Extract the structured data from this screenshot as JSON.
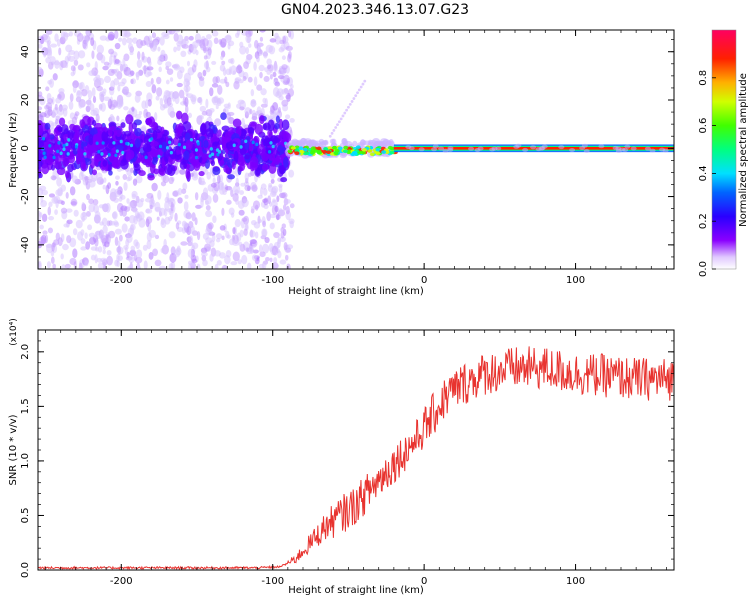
{
  "title": "GN04.2023.346.13.07.G23",
  "chart_data": [
    {
      "type": "heatmap",
      "xlabel": "Height of straight line (km)",
      "ylabel": "Frequency (Hz)",
      "xlim": [
        -255,
        165
      ],
      "ylim": [
        -50,
        49
      ],
      "x_ticks": [
        -200,
        -100,
        0,
        100
      ],
      "y_ticks": [
        -40,
        -20,
        0,
        20,
        40
      ],
      "colorbar": {
        "label": "Normalized spectral amplitude",
        "range": [
          0,
          1
        ],
        "ticks": [
          "0.0",
          "0.2",
          "0.4",
          "0.6",
          "0.8"
        ]
      },
      "description_regions": [
        {
          "x_range": [
            -255,
            -90
          ],
          "freq_range": [
            -50,
            49
          ],
          "amplitude": "low-scatter"
        },
        {
          "x_range": [
            -255,
            -90
          ],
          "freq_range": [
            -12,
            12
          ],
          "amplitude": "medium"
        },
        {
          "x_range": [
            -90,
            -20
          ],
          "freq_range": [
            -4,
            3
          ],
          "amplitude": "medium-high"
        },
        {
          "x_range": [
            -20,
            165
          ],
          "freq_range": [
            -1,
            1
          ],
          "amplitude": "high"
        }
      ]
    },
    {
      "type": "line",
      "xlabel": "Height of straight line (km)",
      "ylabel": "SNR (10 * v/v)",
      "y_multiplier": "(x10⁴)",
      "xlim": [
        -255,
        165
      ],
      "ylim": [
        0,
        2.2
      ],
      "x_ticks": [
        -200,
        -100,
        0,
        100
      ],
      "y_ticks": [
        "0.0",
        "0.5",
        "1.0",
        "1.5",
        "2.0"
      ],
      "series": [
        {
          "color": "#e8332f",
          "x": [
            -255,
            -200,
            -150,
            -110,
            -95,
            -85,
            -75,
            -65,
            -55,
            -45,
            -35,
            -25,
            -15,
            -5,
            5,
            15,
            25,
            40,
            60,
            80,
            100,
            120,
            140,
            165
          ],
          "y": [
            0.02,
            0.02,
            0.02,
            0.02,
            0.03,
            0.1,
            0.25,
            0.4,
            0.5,
            0.6,
            0.75,
            0.9,
            1.05,
            1.2,
            1.4,
            1.6,
            1.7,
            1.8,
            1.85,
            1.85,
            1.8,
            1.78,
            1.75,
            1.75
          ]
        }
      ]
    }
  ]
}
